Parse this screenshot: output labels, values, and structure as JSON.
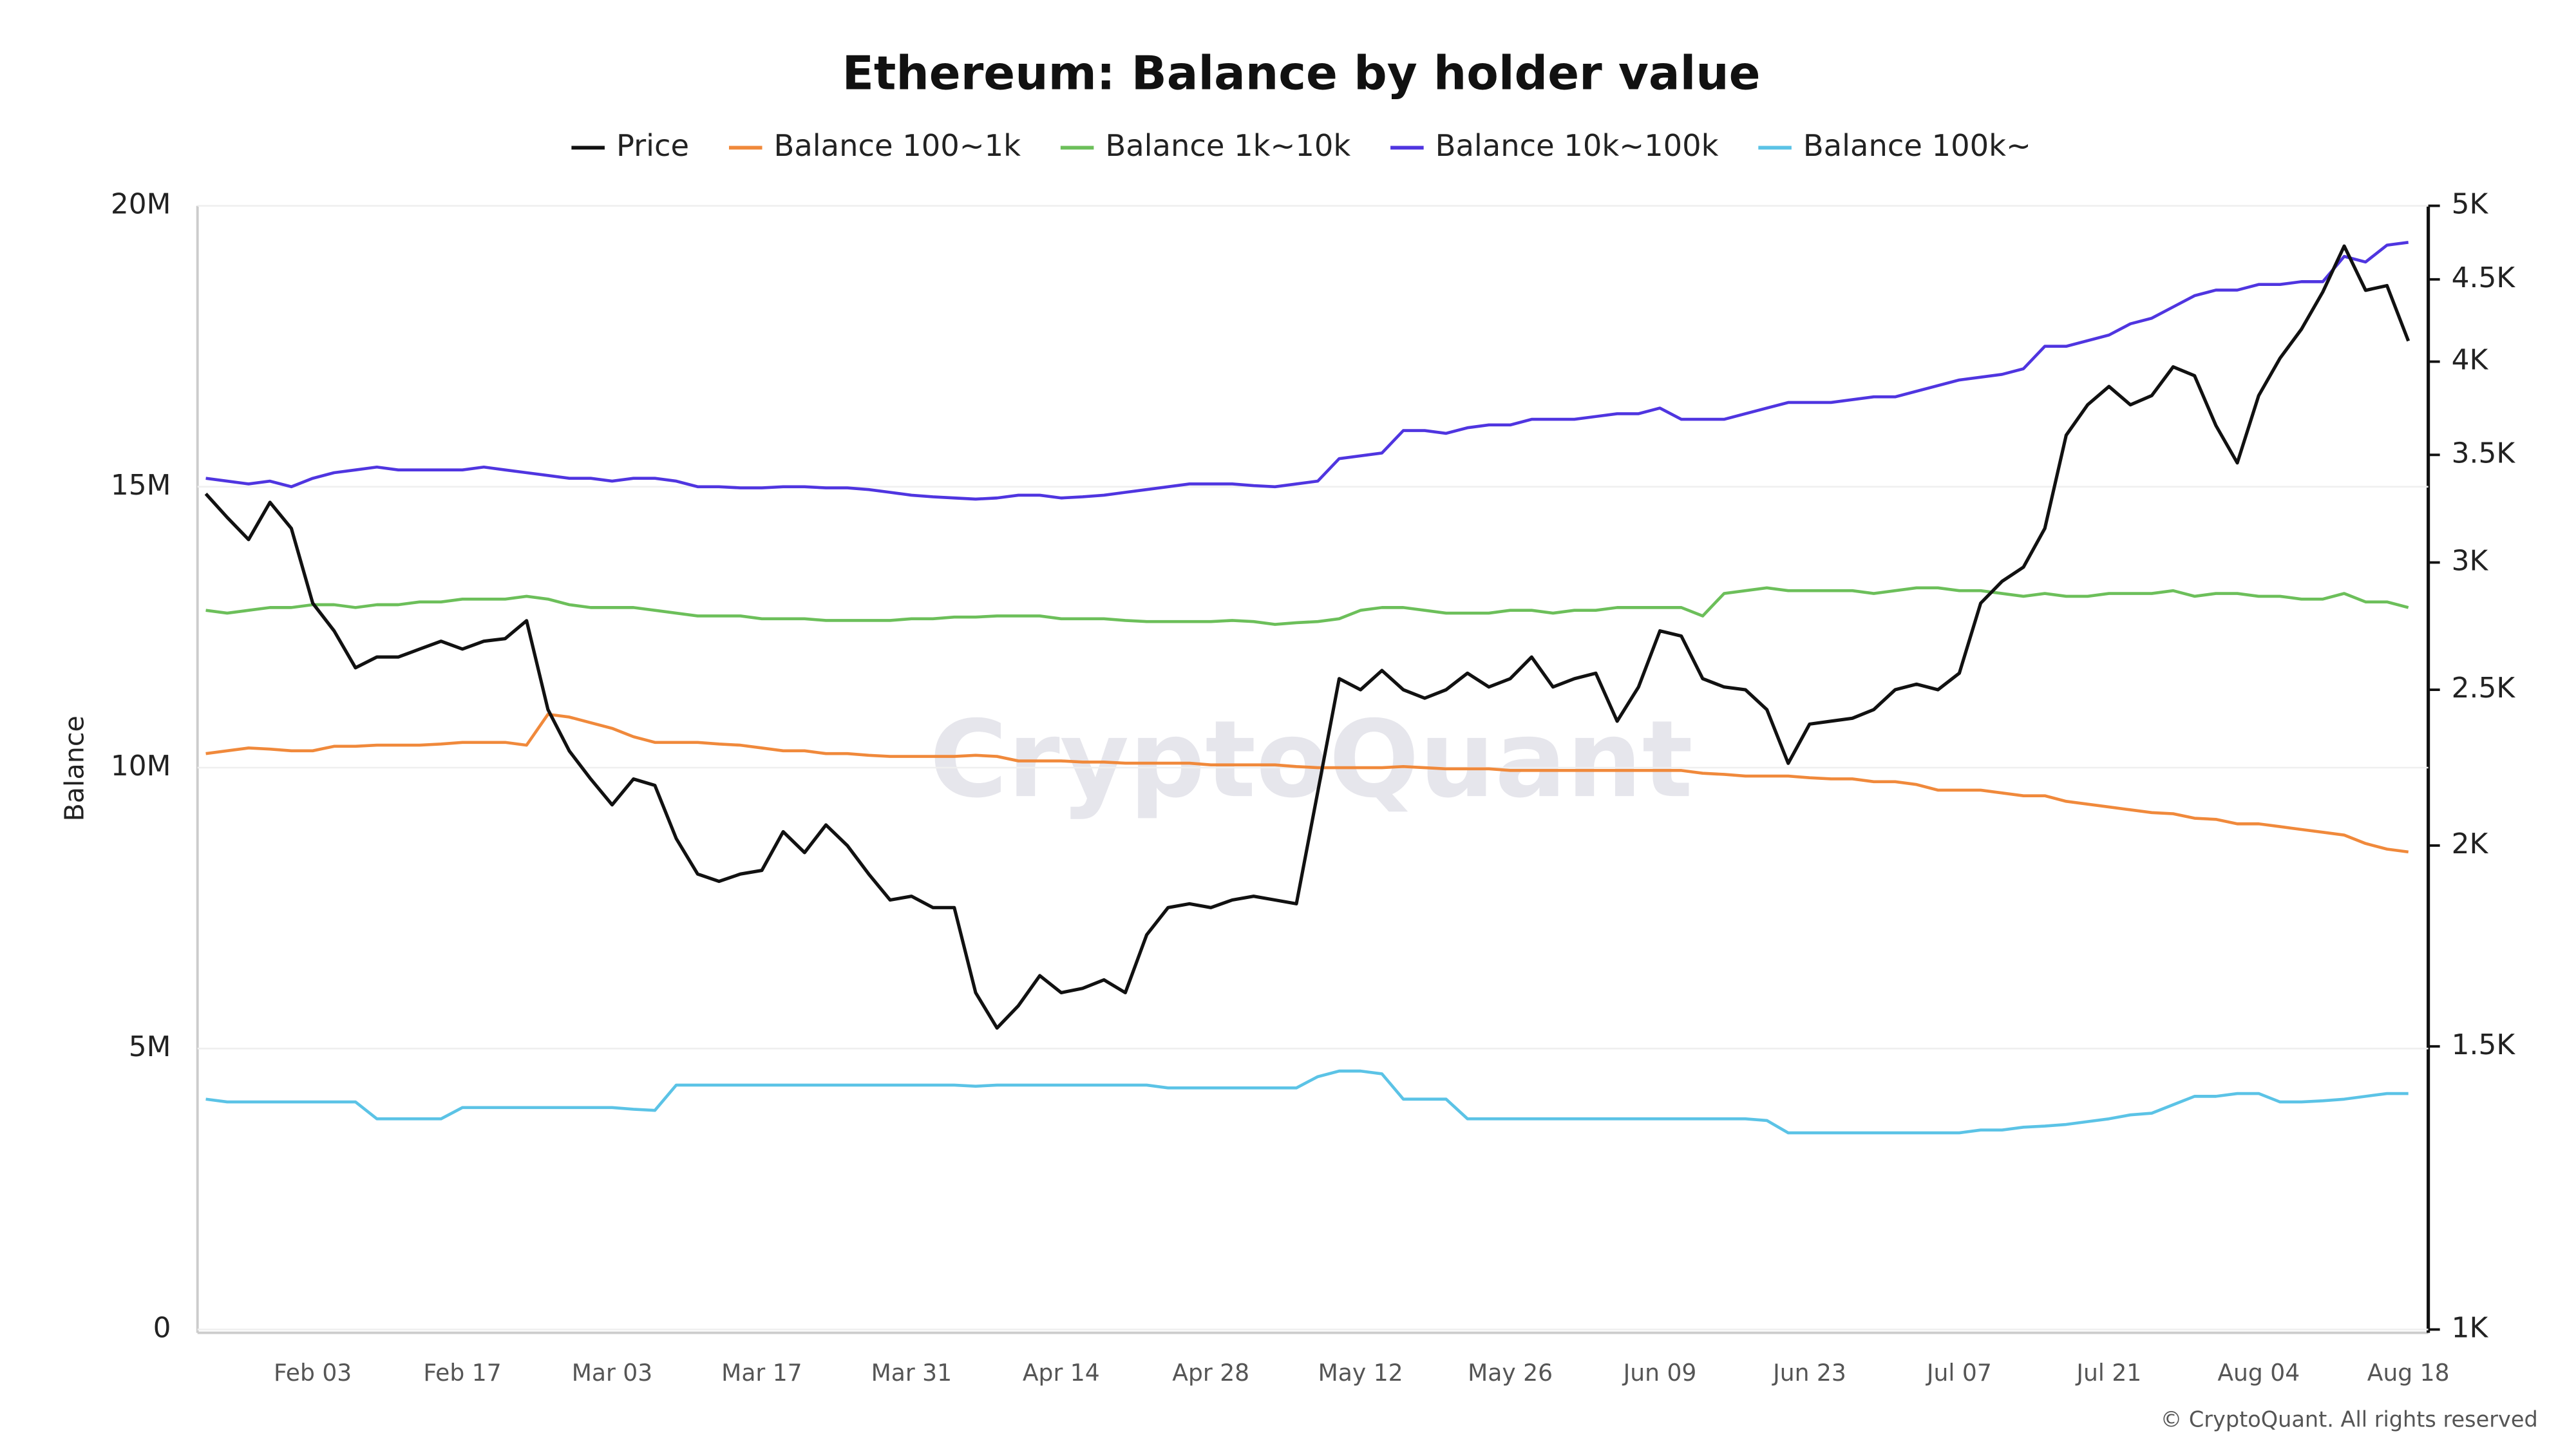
{
  "chart_data": {
    "type": "line",
    "title": "Ethereum: Balance by holder value",
    "y_label": "Balance",
    "watermark": "CryptoQuant",
    "credit": "© CryptoQuant. All rights reserved",
    "legend": "top",
    "grid": true,
    "categories": [
      null,
      null,
      null,
      null,
      null,
      "Feb 03",
      null,
      null,
      null,
      null,
      null,
      null,
      "Feb 17",
      null,
      null,
      null,
      null,
      null,
      null,
      "Mar 03",
      null,
      null,
      null,
      null,
      null,
      null,
      "Mar 17",
      null,
      null,
      null,
      null,
      null,
      null,
      "Mar 31",
      null,
      null,
      null,
      null,
      null,
      null,
      "Apr 14",
      null,
      null,
      null,
      null,
      null,
      null,
      "Apr 28",
      null,
      null,
      null,
      null,
      null,
      null,
      "May 12",
      null,
      null,
      null,
      null,
      null,
      null,
      "May 26",
      null,
      null,
      null,
      null,
      null,
      null,
      "Jun 09",
      null,
      null,
      null,
      null,
      null,
      null,
      "Jun 23",
      null,
      null,
      null,
      null,
      null,
      null,
      "Jul 07",
      null,
      null,
      null,
      null,
      null,
      null,
      "Jul 21",
      null,
      null,
      null,
      null,
      null,
      null,
      "Aug 04",
      null,
      null,
      null,
      null,
      null,
      null,
      "Aug 18"
    ],
    "ylim": [
      0,
      20000000
    ],
    "yticks": [
      0,
      {
        "value": 5000000,
        "label": "5M"
      },
      {
        "value": 10000000,
        "label": "10M"
      },
      {
        "value": 15000000,
        "label": "15M"
      },
      {
        "value": 20000000,
        "label": "20M"
      }
    ],
    "y2lim": [
      1000,
      5000
    ],
    "y2scale": "log",
    "y2ticks": [
      {
        "value": 1000,
        "label": "1K"
      },
      {
        "value": 1500,
        "label": "1.5K"
      },
      {
        "value": 2000,
        "label": "2K"
      },
      {
        "value": 2500,
        "label": "2.5K"
      },
      {
        "value": 3000,
        "label": "3K"
      },
      {
        "value": 3500,
        "label": "3.5K"
      },
      {
        "value": 4000,
        "label": "4K"
      },
      {
        "value": 4500,
        "label": "4.5K"
      },
      {
        "value": 5000,
        "label": "5K"
      }
    ],
    "series": [
      {
        "name": "Price",
        "color": "#111111",
        "axis": "y2",
        "values": [
          3310,
          3200,
          3100,
          3270,
          3150,
          2830,
          2720,
          2580,
          2620,
          2620,
          2650,
          2680,
          2650,
          2680,
          2690,
          2760,
          2430,
          2290,
          2200,
          2120,
          2200,
          2180,
          2020,
          1920,
          1900,
          1920,
          1930,
          2040,
          1980,
          2060,
          2000,
          1920,
          1850,
          1860,
          1830,
          1830,
          1620,
          1540,
          1590,
          1660,
          1620,
          1630,
          1650,
          1620,
          1760,
          1830,
          1840,
          1830,
          1850,
          1860,
          1850,
          1840,
          2160,
          2540,
          2500,
          2570,
          2500,
          2470,
          2500,
          2560,
          2510,
          2540,
          2620,
          2510,
          2540,
          2560,
          2390,
          2510,
          2720,
          2700,
          2540,
          2510,
          2500,
          2430,
          2250,
          2380,
          2390,
          2400,
          2430,
          2500,
          2520,
          2500,
          2560,
          2830,
          2920,
          2980,
          3150,
          3600,
          3760,
          3860,
          3760,
          3810,
          3970,
          3920,
          3650,
          3460,
          3810,
          4020,
          4190,
          4420,
          4720,
          4430,
          4460,
          4120
        ]
      },
      {
        "name": "Balance 100~1k",
        "color": "#f0893b",
        "values": [
          10250000,
          10300000,
          10350000,
          10330000,
          10300000,
          10300000,
          10380000,
          10380000,
          10400000,
          10400000,
          10400000,
          10420000,
          10450000,
          10450000,
          10450000,
          10400000,
          10950000,
          10900000,
          10800000,
          10700000,
          10550000,
          10450000,
          10450000,
          10450000,
          10420000,
          10400000,
          10350000,
          10300000,
          10300000,
          10250000,
          10250000,
          10220000,
          10200000,
          10200000,
          10200000,
          10200000,
          10220000,
          10200000,
          10120000,
          10120000,
          10120000,
          10100000,
          10100000,
          10080000,
          10080000,
          10080000,
          10080000,
          10050000,
          10050000,
          10050000,
          10050000,
          10020000,
          10000000,
          10000000,
          10000000,
          10000000,
          10020000,
          10000000,
          9980000,
          9980000,
          9980000,
          9950000,
          9950000,
          9950000,
          9950000,
          9950000,
          9950000,
          9950000,
          9950000,
          9950000,
          9900000,
          9880000,
          9850000,
          9850000,
          9850000,
          9820000,
          9800000,
          9800000,
          9750000,
          9750000,
          9700000,
          9600000,
          9600000,
          9600000,
          9550000,
          9500000,
          9500000,
          9400000,
          9350000,
          9300000,
          9250000,
          9200000,
          9180000,
          9100000,
          9080000,
          9000000,
          9000000,
          8950000,
          8900000,
          8850000,
          8800000,
          8650000,
          8550000,
          8500000
        ]
      },
      {
        "name": "Balance 1k~10k",
        "color": "#6cbf5a",
        "values": [
          12800000,
          12750000,
          12800000,
          12850000,
          12850000,
          12900000,
          12900000,
          12850000,
          12900000,
          12900000,
          12950000,
          12950000,
          13000000,
          13000000,
          13000000,
          13050000,
          13000000,
          12900000,
          12850000,
          12850000,
          12850000,
          12800000,
          12750000,
          12700000,
          12700000,
          12700000,
          12650000,
          12650000,
          12650000,
          12620000,
          12620000,
          12620000,
          12620000,
          12650000,
          12650000,
          12680000,
          12680000,
          12700000,
          12700000,
          12700000,
          12650000,
          12650000,
          12650000,
          12620000,
          12600000,
          12600000,
          12600000,
          12600000,
          12620000,
          12600000,
          12550000,
          12580000,
          12600000,
          12650000,
          12800000,
          12850000,
          12850000,
          12800000,
          12750000,
          12750000,
          12750000,
          12800000,
          12800000,
          12750000,
          12800000,
          12800000,
          12850000,
          12850000,
          12850000,
          12850000,
          12700000,
          13100000,
          13150000,
          13200000,
          13150000,
          13150000,
          13150000,
          13150000,
          13100000,
          13150000,
          13200000,
          13200000,
          13150000,
          13150000,
          13100000,
          13050000,
          13100000,
          13050000,
          13050000,
          13100000,
          13100000,
          13100000,
          13150000,
          13050000,
          13100000,
          13100000,
          13050000,
          13050000,
          13000000,
          13000000,
          13100000,
          12950000,
          12950000,
          12850000
        ]
      },
      {
        "name": "Balance 10k~100k",
        "color": "#4f35e0",
        "values": [
          15150000,
          15100000,
          15050000,
          15100000,
          15000000,
          15150000,
          15250000,
          15300000,
          15350000,
          15300000,
          15300000,
          15300000,
          15300000,
          15350000,
          15300000,
          15250000,
          15200000,
          15150000,
          15150000,
          15100000,
          15150000,
          15150000,
          15100000,
          15000000,
          15000000,
          14980000,
          14980000,
          15000000,
          15000000,
          14980000,
          14980000,
          14950000,
          14900000,
          14850000,
          14820000,
          14800000,
          14780000,
          14800000,
          14850000,
          14850000,
          14800000,
          14820000,
          14850000,
          14900000,
          14950000,
          15000000,
          15050000,
          15050000,
          15050000,
          15020000,
          15000000,
          15050000,
          15100000,
          15500000,
          15550000,
          15600000,
          16000000,
          16000000,
          15950000,
          16050000,
          16100000,
          16100000,
          16200000,
          16200000,
          16200000,
          16250000,
          16300000,
          16300000,
          16400000,
          16200000,
          16200000,
          16200000,
          16300000,
          16400000,
          16500000,
          16500000,
          16500000,
          16550000,
          16600000,
          16600000,
          16700000,
          16800000,
          16900000,
          16950000,
          17000000,
          17100000,
          17500000,
          17500000,
          17600000,
          17700000,
          17900000,
          18000000,
          18200000,
          18400000,
          18500000,
          18500000,
          18600000,
          18600000,
          18650000,
          18650000,
          19100000,
          19000000,
          19300000,
          19350000
        ]
      },
      {
        "name": "Balance 100k~",
        "color": "#5bc3e6",
        "values": [
          4100000,
          4050000,
          4050000,
          4050000,
          4050000,
          4050000,
          4050000,
          4050000,
          3750000,
          3750000,
          3750000,
          3750000,
          3950000,
          3950000,
          3950000,
          3950000,
          3950000,
          3950000,
          3950000,
          3950000,
          3920000,
          3900000,
          4350000,
          4350000,
          4350000,
          4350000,
          4350000,
          4350000,
          4350000,
          4350000,
          4350000,
          4350000,
          4350000,
          4350000,
          4350000,
          4350000,
          4330000,
          4350000,
          4350000,
          4350000,
          4350000,
          4350000,
          4350000,
          4350000,
          4350000,
          4300000,
          4300000,
          4300000,
          4300000,
          4300000,
          4300000,
          4300000,
          4500000,
          4600000,
          4600000,
          4550000,
          4100000,
          4100000,
          4100000,
          3750000,
          3750000,
          3750000,
          3750000,
          3750000,
          3750000,
          3750000,
          3750000,
          3750000,
          3750000,
          3750000,
          3750000,
          3750000,
          3750000,
          3720000,
          3500000,
          3500000,
          3500000,
          3500000,
          3500000,
          3500000,
          3500000,
          3500000,
          3500000,
          3550000,
          3550000,
          3600000,
          3620000,
          3650000,
          3700000,
          3750000,
          3820000,
          3850000,
          4000000,
          4150000,
          4150000,
          4200000,
          4200000,
          4050000,
          4050000,
          4070000,
          4100000,
          4150000,
          4200000,
          4200000
        ]
      }
    ]
  }
}
